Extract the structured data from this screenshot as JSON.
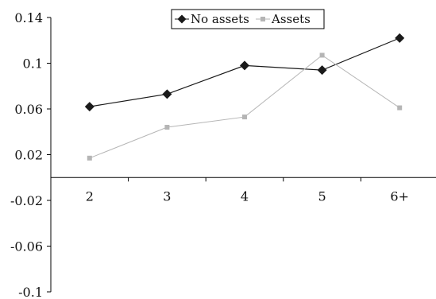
{
  "chart_data": {
    "type": "line",
    "title": "",
    "xlabel": "",
    "ylabel": "",
    "categories": [
      "2",
      "3",
      "4",
      "5",
      "6+"
    ],
    "series": [
      {
        "name": "No assets",
        "values": [
          0.062,
          0.073,
          0.098,
          0.094,
          0.122
        ],
        "color": "#1a1a1a",
        "marker": "diamond"
      },
      {
        "name": "Assets",
        "values": [
          0.017,
          0.044,
          0.053,
          0.107,
          0.061
        ],
        "color": "#b5b5b5",
        "marker": "square"
      }
    ],
    "y_ticks": [
      "0.14",
      "0.1",
      "0.06",
      "0.02",
      "-0.02",
      "-0.06",
      "-0.1"
    ],
    "ylim": [
      -0.1,
      0.14
    ],
    "grid": false,
    "legend_position": "top-center"
  }
}
